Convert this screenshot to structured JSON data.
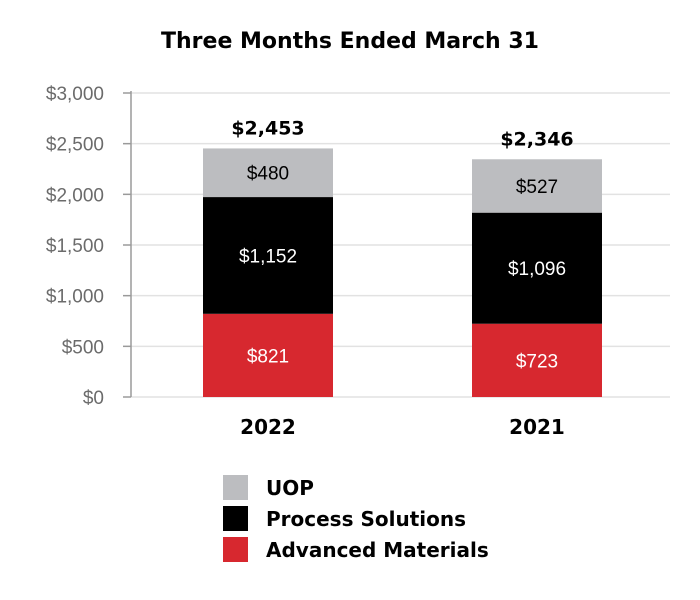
{
  "chart_data": {
    "type": "bar",
    "stacked": true,
    "title": "Three Months Ended March 31",
    "categories": [
      "2022",
      "2021"
    ],
    "series": [
      {
        "name": "Advanced Materials",
        "values": [
          821,
          723
        ],
        "labels": [
          "$821",
          "$723"
        ],
        "color": "#d7282f",
        "label_color": "#ffffff"
      },
      {
        "name": "Process Solutions",
        "values": [
          1152,
          1096
        ],
        "labels": [
          "$1,152",
          "$1,096"
        ],
        "color": "#000000",
        "label_color": "#ffffff"
      },
      {
        "name": "UOP",
        "values": [
          480,
          527
        ],
        "labels": [
          "$480",
          "$527"
        ],
        "color": "#bcbdc0",
        "label_color": "#000000"
      }
    ],
    "totals": [
      2453,
      2346
    ],
    "total_labels": [
      "$2,453",
      "$2,346"
    ],
    "ylim": [
      0,
      3000
    ],
    "yticks": [
      0,
      500,
      1000,
      1500,
      2000,
      2500,
      3000
    ],
    "ytick_labels": [
      "$0",
      "$500",
      "$1,000",
      "$1,500",
      "$2,000",
      "$2,500",
      "$3,000"
    ],
    "grid": true,
    "legend": {
      "position": "bottom",
      "entries": [
        {
          "name": "UOP",
          "color": "#bcbdc0"
        },
        {
          "name": "Process Solutions",
          "color": "#000000"
        },
        {
          "name": "Advanced Materials",
          "color": "#d7282f"
        }
      ]
    },
    "xlabel": "",
    "ylabel": ""
  }
}
